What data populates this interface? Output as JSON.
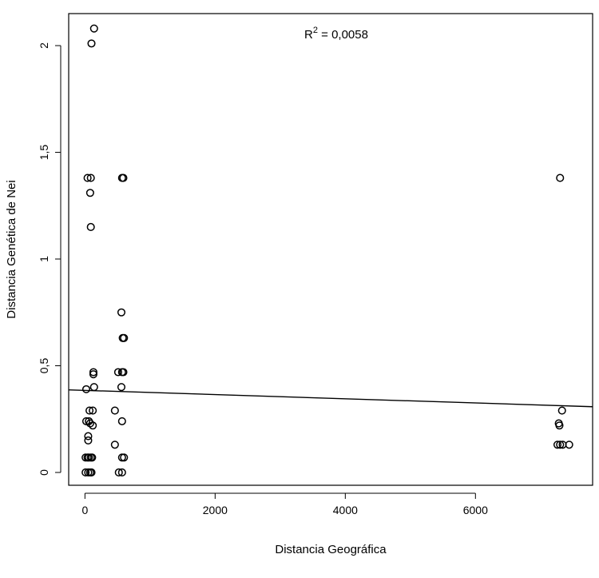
{
  "chart_data": {
    "type": "scatter",
    "title": "",
    "xlabel": "Distancia Geográfica",
    "ylabel": "Distancia Genética de Nei",
    "xlim": [
      -250,
      7800
    ],
    "ylim": [
      -0.06,
      2.15
    ],
    "x_ticks": [
      0,
      2000,
      4000,
      6000
    ],
    "x_tick_labels": [
      "0",
      "2000",
      "4000",
      "6000"
    ],
    "y_ticks": [
      0,
      0.5,
      1,
      1.5,
      2
    ],
    "y_tick_labels": [
      "0",
      "0,5",
      "1",
      "1,5",
      "2"
    ],
    "grid": false,
    "legend": "none",
    "annotation": {
      "prefix": "R",
      "superscript": "2",
      "text": " = 0,0058"
    },
    "regression_line": {
      "x": [
        -250,
        7800
      ],
      "y": [
        0.387,
        0.308
      ]
    },
    "points": [
      {
        "x": 140,
        "y": 2.08
      },
      {
        "x": 100,
        "y": 2.01
      },
      {
        "x": 40,
        "y": 1.38
      },
      {
        "x": 90,
        "y": 1.38
      },
      {
        "x": 570,
        "y": 1.38
      },
      {
        "x": 590,
        "y": 1.38
      },
      {
        "x": 7300,
        "y": 1.38
      },
      {
        "x": 80,
        "y": 1.31
      },
      {
        "x": 90,
        "y": 1.15
      },
      {
        "x": 560,
        "y": 0.75
      },
      {
        "x": 580,
        "y": 0.63
      },
      {
        "x": 600,
        "y": 0.63
      },
      {
        "x": 130,
        "y": 0.47
      },
      {
        "x": 130,
        "y": 0.46
      },
      {
        "x": 510,
        "y": 0.47
      },
      {
        "x": 570,
        "y": 0.47
      },
      {
        "x": 590,
        "y": 0.47
      },
      {
        "x": 140,
        "y": 0.4
      },
      {
        "x": 560,
        "y": 0.4
      },
      {
        "x": 20,
        "y": 0.39
      },
      {
        "x": 70,
        "y": 0.29
      },
      {
        "x": 120,
        "y": 0.29
      },
      {
        "x": 460,
        "y": 0.29
      },
      {
        "x": 7330,
        "y": 0.29
      },
      {
        "x": 20,
        "y": 0.24
      },
      {
        "x": 60,
        "y": 0.24
      },
      {
        "x": 80,
        "y": 0.23
      },
      {
        "x": 570,
        "y": 0.24
      },
      {
        "x": 7280,
        "y": 0.23
      },
      {
        "x": 7290,
        "y": 0.22
      },
      {
        "x": 120,
        "y": 0.22
      },
      {
        "x": 50,
        "y": 0.17
      },
      {
        "x": 50,
        "y": 0.15
      },
      {
        "x": 460,
        "y": 0.13
      },
      {
        "x": 7260,
        "y": 0.13
      },
      {
        "x": 7300,
        "y": 0.13
      },
      {
        "x": 7340,
        "y": 0.13
      },
      {
        "x": 7440,
        "y": 0.13
      },
      {
        "x": 10,
        "y": 0.07
      },
      {
        "x": 40,
        "y": 0.07
      },
      {
        "x": 60,
        "y": 0.07
      },
      {
        "x": 90,
        "y": 0.07
      },
      {
        "x": 110,
        "y": 0.07
      },
      {
        "x": 570,
        "y": 0.07
      },
      {
        "x": 600,
        "y": 0.07
      },
      {
        "x": 10,
        "y": 0.0
      },
      {
        "x": 50,
        "y": 0.0
      },
      {
        "x": 80,
        "y": 0.0
      },
      {
        "x": 100,
        "y": 0.0
      },
      {
        "x": 520,
        "y": 0.0
      },
      {
        "x": 570,
        "y": 0.0
      }
    ]
  }
}
